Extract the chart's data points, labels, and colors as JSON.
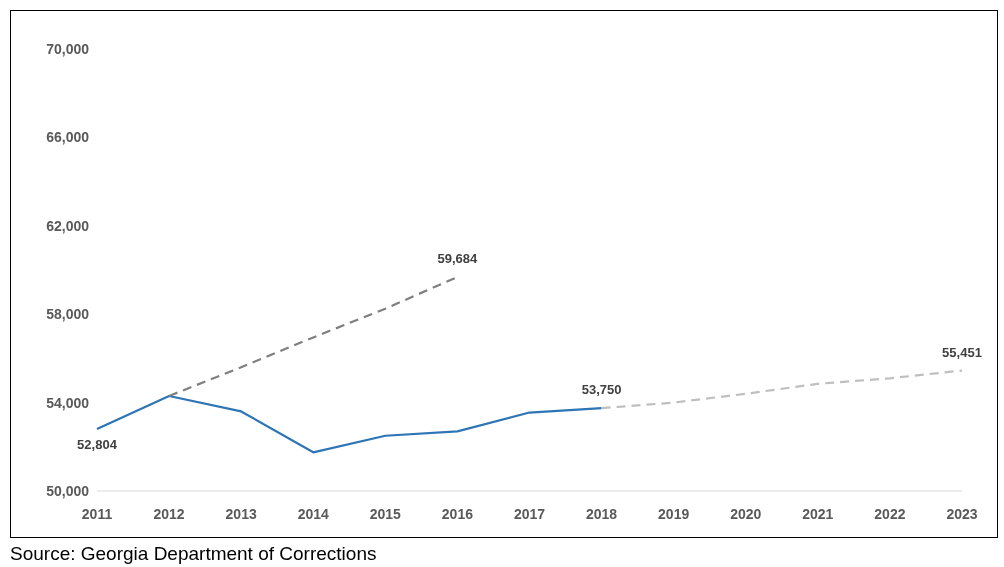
{
  "chart_data": {
    "type": "line",
    "categories": [
      "2011",
      "2012",
      "2013",
      "2014",
      "2015",
      "2016",
      "2017",
      "2018",
      "2019",
      "2020",
      "2021",
      "2022",
      "2023"
    ],
    "series": [
      {
        "color": "#2e75b6",
        "line_style": "solid",
        "values": [
          52804,
          54300,
          53600,
          51750,
          52500,
          52700,
          53550,
          53750,
          null,
          null,
          null,
          null,
          null
        ],
        "value_labels": [
          "52,804",
          null,
          null,
          null,
          null,
          null,
          null,
          "53,750",
          null,
          null,
          null,
          null,
          null
        ]
      },
      {
        "color": "#7f7f7f",
        "line_style": "dashed",
        "values": [
          null,
          54300,
          55600,
          56950,
          58250,
          59684,
          null,
          null,
          null,
          null,
          null,
          null,
          null
        ],
        "value_labels": [
          null,
          null,
          null,
          null,
          null,
          "59,684",
          null,
          null,
          null,
          null,
          null,
          null,
          null
        ]
      },
      {
        "color": "#bfbfbf",
        "line_style": "dashed",
        "values": [
          null,
          null,
          null,
          null,
          null,
          null,
          null,
          53750,
          54000,
          54400,
          54850,
          55100,
          55451
        ],
        "value_labels": [
          null,
          null,
          null,
          null,
          null,
          null,
          null,
          null,
          null,
          null,
          null,
          null,
          "55,451"
        ]
      }
    ],
    "ylim": [
      50000,
      70000
    ],
    "yticks": [
      {
        "value": 50000,
        "label": "50,000"
      },
      {
        "value": 54000,
        "label": "54,000"
      },
      {
        "value": 58000,
        "label": "58,000"
      },
      {
        "value": 62000,
        "label": "62,000"
      },
      {
        "value": 66000,
        "label": "66,000"
      },
      {
        "value": 70000,
        "label": "70,000"
      }
    ],
    "grid": false,
    "marker": "none",
    "annotations": [
      "Source: Georgia Department of Corrections"
    ]
  }
}
